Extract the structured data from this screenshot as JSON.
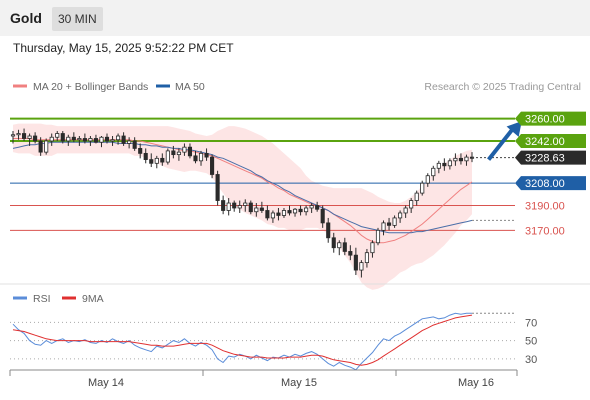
{
  "header": {
    "title": "Gold",
    "timeframe": "30 MIN"
  },
  "datetime": "Thursday, May 15, 2025 9:52:22 PM CET",
  "legend": {
    "ma20": "MA 20 + Bollinger Bands",
    "ma50": "MA 50",
    "copyright": "Research © 2025 Trading Central"
  },
  "rsi_legend": {
    "rsi": "RSI",
    "ma9": "9MA"
  },
  "colors": {
    "green": "#5aa30f",
    "blue": "#1f5fa6",
    "red": "#d9534f",
    "candle": "#2b2b2b",
    "band": "#fde0e0",
    "ma20": "#f08080",
    "ma50": "#4a6ea8",
    "rsi": "#5b8dd9",
    "rsi_ma": "#e03030"
  },
  "chart_data": [
    {
      "type": "candlestick",
      "x_labels": [
        "May 14",
        "May 15",
        "May 16"
      ],
      "ylim": [
        3130,
        3275
      ],
      "last_price": 3228.63,
      "levels": [
        {
          "value": 3260.0,
          "label": "3260.00",
          "kind": "resistance"
        },
        {
          "value": 3242.0,
          "label": "3242.00",
          "kind": "resistance"
        },
        {
          "value": 3208.0,
          "label": "3208.00",
          "kind": "pivot"
        },
        {
          "value": 3190.0,
          "label": "3190.00",
          "kind": "support"
        },
        {
          "value": 3170.0,
          "label": "3170.00",
          "kind": "support"
        }
      ],
      "arrow": {
        "from": [
          86,
          3227
        ],
        "to": [
          92,
          3258
        ]
      },
      "ohlc": [
        [
          3246,
          3250,
          3240,
          3247
        ],
        [
          3247,
          3251,
          3243,
          3248
        ],
        [
          3248,
          3252,
          3242,
          3244
        ],
        [
          3244,
          3248,
          3238,
          3246
        ],
        [
          3246,
          3249,
          3240,
          3242
        ],
        [
          3242,
          3245,
          3230,
          3233
        ],
        [
          3233,
          3244,
          3231,
          3242
        ],
        [
          3242,
          3248,
          3238,
          3245
        ],
        [
          3245,
          3250,
          3242,
          3248
        ],
        [
          3248,
          3250,
          3240,
          3242
        ],
        [
          3242,
          3247,
          3238,
          3245
        ],
        [
          3245,
          3249,
          3241,
          3243
        ],
        [
          3243,
          3246,
          3238,
          3244
        ],
        [
          3244,
          3248,
          3240,
          3242
        ],
        [
          3242,
          3246,
          3238,
          3244
        ],
        [
          3244,
          3247,
          3240,
          3241
        ],
        [
          3241,
          3246,
          3237,
          3245
        ],
        [
          3245,
          3248,
          3240,
          3242
        ],
        [
          3242,
          3246,
          3238,
          3243
        ],
        [
          3243,
          3248,
          3239,
          3246
        ],
        [
          3246,
          3249,
          3238,
          3240
        ],
        [
          3240,
          3245,
          3236,
          3242
        ],
        [
          3242,
          3245,
          3234,
          3236
        ],
        [
          3236,
          3240,
          3228,
          3232
        ],
        [
          3232,
          3236,
          3224,
          3227
        ],
        [
          3227,
          3232,
          3221,
          3224
        ],
        [
          3224,
          3230,
          3220,
          3228
        ],
        [
          3228,
          3232,
          3222,
          3225
        ],
        [
          3225,
          3236,
          3223,
          3234
        ],
        [
          3234,
          3238,
          3228,
          3231
        ],
        [
          3231,
          3236,
          3226,
          3233
        ],
        [
          3233,
          3240,
          3230,
          3237
        ],
        [
          3237,
          3240,
          3228,
          3230
        ],
        [
          3230,
          3234,
          3224,
          3226
        ],
        [
          3226,
          3234,
          3222,
          3232
        ],
        [
          3232,
          3236,
          3226,
          3229
        ],
        [
          3229,
          3231,
          3212,
          3215
        ],
        [
          3215,
          3218,
          3190,
          3194
        ],
        [
          3194,
          3198,
          3183,
          3186
        ],
        [
          3186,
          3196,
          3182,
          3192
        ],
        [
          3192,
          3194,
          3185,
          3188
        ],
        [
          3188,
          3194,
          3184,
          3190
        ],
        [
          3190,
          3195,
          3185,
          3192
        ],
        [
          3192,
          3194,
          3183,
          3185
        ],
        [
          3185,
          3192,
          3181,
          3188
        ],
        [
          3188,
          3193,
          3184,
          3186
        ],
        [
          3186,
          3190,
          3178,
          3180
        ],
        [
          3180,
          3186,
          3176,
          3184
        ],
        [
          3184,
          3188,
          3178,
          3182
        ],
        [
          3182,
          3188,
          3180,
          3186
        ],
        [
          3186,
          3190,
          3182,
          3184
        ],
        [
          3184,
          3188,
          3181,
          3187
        ],
        [
          3187,
          3190,
          3182,
          3185
        ],
        [
          3185,
          3190,
          3182,
          3188
        ],
        [
          3188,
          3192,
          3184,
          3190
        ],
        [
          3190,
          3193,
          3185,
          3187
        ],
        [
          3187,
          3190,
          3172,
          3176
        ],
        [
          3176,
          3180,
          3160,
          3164
        ],
        [
          3164,
          3168,
          3152,
          3156
        ],
        [
          3156,
          3162,
          3150,
          3160
        ],
        [
          3160,
          3164,
          3150,
          3153
        ],
        [
          3153,
          3158,
          3146,
          3150
        ],
        [
          3150,
          3156,
          3134,
          3138
        ],
        [
          3138,
          3146,
          3132,
          3144
        ],
        [
          3144,
          3155,
          3140,
          3152
        ],
        [
          3152,
          3162,
          3148,
          3160
        ],
        [
          3160,
          3172,
          3158,
          3170
        ],
        [
          3170,
          3178,
          3166,
          3176
        ],
        [
          3176,
          3180,
          3170,
          3174
        ],
        [
          3174,
          3182,
          3172,
          3180
        ],
        [
          3180,
          3186,
          3176,
          3184
        ],
        [
          3184,
          3190,
          3180,
          3188
        ],
        [
          3188,
          3196,
          3184,
          3194
        ],
        [
          3194,
          3202,
          3190,
          3200
        ],
        [
          3200,
          3210,
          3198,
          3208
        ],
        [
          3208,
          3216,
          3205,
          3214
        ],
        [
          3214,
          3222,
          3210,
          3220
        ],
        [
          3220,
          3226,
          3216,
          3224
        ],
        [
          3224,
          3228,
          3218,
          3222
        ],
        [
          3222,
          3228,
          3219,
          3226
        ],
        [
          3226,
          3232,
          3222,
          3228
        ],
        [
          3228,
          3232,
          3223,
          3226
        ],
        [
          3226,
          3231,
          3222,
          3229
        ],
        [
          3229,
          3233,
          3225,
          3228
        ]
      ],
      "ma20": [
        3244,
        3244,
        3244,
        3244,
        3243,
        3243,
        3243,
        3243,
        3243,
        3243,
        3243,
        3243,
        3243,
        3243,
        3243,
        3243,
        3243,
        3243,
        3243,
        3243,
        3243,
        3243,
        3242,
        3242,
        3241,
        3240,
        3239,
        3238,
        3237,
        3236,
        3235,
        3234,
        3234,
        3233,
        3232,
        3231,
        3230,
        3228,
        3226,
        3224,
        3222,
        3220,
        3218,
        3216,
        3214,
        3212,
        3209,
        3207,
        3204,
        3202,
        3199,
        3197,
        3195,
        3193,
        3191,
        3190,
        3188,
        3186,
        3183,
        3180,
        3177,
        3174,
        3170,
        3166,
        3163,
        3161,
        3160,
        3160,
        3161,
        3162,
        3164,
        3166,
        3169,
        3172,
        3175,
        3179,
        3183,
        3187,
        3191,
        3195,
        3199,
        3203,
        3206,
        3209
      ],
      "ma50": [
        3236,
        3237,
        3238,
        3239,
        3239,
        3240,
        3240,
        3241,
        3241,
        3241,
        3241,
        3241,
        3241,
        3241,
        3241,
        3241,
        3241,
        3241,
        3241,
        3240,
        3240,
        3240,
        3240,
        3239,
        3239,
        3238,
        3238,
        3237,
        3237,
        3236,
        3236,
        3235,
        3235,
        3234,
        3233,
        3232,
        3231,
        3229,
        3228,
        3226,
        3224,
        3222,
        3220,
        3218,
        3215,
        3213,
        3210,
        3208,
        3206,
        3203,
        3201,
        3198,
        3196,
        3194,
        3192,
        3190,
        3188,
        3186,
        3183,
        3181,
        3179,
        3177,
        3175,
        3173,
        3172,
        3171,
        3170,
        3169,
        3168,
        3168,
        3168,
        3168,
        3168,
        3169,
        3169,
        3170,
        3171,
        3172,
        3173,
        3174,
        3175,
        3176,
        3177,
        3178
      ],
      "bb_upper": [
        3255,
        3256,
        3256,
        3256,
        3256,
        3256,
        3255,
        3255,
        3254,
        3254,
        3254,
        3254,
        3254,
        3254,
        3254,
        3254,
        3254,
        3254,
        3254,
        3254,
        3254,
        3254,
        3254,
        3254,
        3254,
        3254,
        3254,
        3254,
        3254,
        3253,
        3252,
        3251,
        3250,
        3248,
        3247,
        3246,
        3247,
        3250,
        3252,
        3254,
        3254,
        3253,
        3252,
        3250,
        3248,
        3246,
        3243,
        3240,
        3236,
        3232,
        3228,
        3224,
        3220,
        3214,
        3210,
        3208,
        3206,
        3205,
        3204,
        3204,
        3204,
        3204,
        3204,
        3204,
        3202,
        3200,
        3197,
        3195,
        3193,
        3192,
        3192,
        3194,
        3197,
        3201,
        3206,
        3211,
        3216,
        3220,
        3224,
        3227,
        3230,
        3232,
        3234,
        3235
      ],
      "bb_lower": [
        3233,
        3232,
        3232,
        3232,
        3230,
        3230,
        3230,
        3230,
        3232,
        3232,
        3232,
        3232,
        3232,
        3232,
        3232,
        3232,
        3232,
        3232,
        3232,
        3232,
        3232,
        3232,
        3230,
        3230,
        3228,
        3226,
        3224,
        3222,
        3220,
        3219,
        3218,
        3217,
        3218,
        3218,
        3217,
        3216,
        3213,
        3206,
        3200,
        3194,
        3190,
        3187,
        3184,
        3182,
        3180,
        3178,
        3175,
        3174,
        3172,
        3172,
        3170,
        3170,
        3170,
        3172,
        3172,
        3172,
        3170,
        3167,
        3162,
        3156,
        3150,
        3144,
        3136,
        3128,
        3124,
        3122,
        3123,
        3125,
        3129,
        3132,
        3136,
        3138,
        3141,
        3143,
        3144,
        3147,
        3150,
        3154,
        3158,
        3163,
        3168,
        3174,
        3178,
        3183
      ]
    },
    {
      "type": "line",
      "series": [
        {
          "name": "RSI"
        },
        {
          "name": "9MA"
        }
      ],
      "yticks": [
        70,
        50,
        30
      ],
      "ylim": [
        20,
        88
      ],
      "rsi": [
        68,
        62,
        58,
        50,
        46,
        45,
        50,
        47,
        50,
        52,
        48,
        50,
        49,
        51,
        48,
        47,
        50,
        48,
        52,
        49,
        47,
        50,
        45,
        42,
        40,
        38,
        44,
        42,
        46,
        50,
        48,
        52,
        47,
        44,
        48,
        45,
        40,
        30,
        26,
        33,
        32,
        35,
        33,
        30,
        34,
        31,
        28,
        32,
        31,
        34,
        32,
        35,
        33,
        36,
        38,
        35,
        30,
        25,
        22,
        26,
        23,
        21,
        18,
        25,
        31,
        37,
        45,
        52,
        50,
        55,
        58,
        62,
        66,
        70,
        74,
        75,
        76,
        74,
        75,
        78,
        80,
        79,
        80,
        80
      ],
      "rsi_ma": [
        62,
        61,
        60,
        58,
        56,
        54,
        52,
        51,
        50,
        50,
        50,
        50,
        50,
        50,
        49,
        49,
        49,
        49,
        49,
        49,
        49,
        49,
        48,
        47,
        46,
        45,
        45,
        44,
        44,
        44,
        45,
        46,
        47,
        47,
        47,
        47,
        45,
        42,
        39,
        37,
        35,
        34,
        33,
        32,
        32,
        32,
        31,
        31,
        31,
        31,
        32,
        32,
        32,
        33,
        34,
        34,
        33,
        31,
        29,
        28,
        27,
        26,
        24,
        23,
        24,
        26,
        29,
        33,
        37,
        41,
        45,
        49,
        53,
        57,
        61,
        64,
        67,
        69,
        71,
        73,
        75,
        76,
        77,
        78
      ]
    }
  ]
}
